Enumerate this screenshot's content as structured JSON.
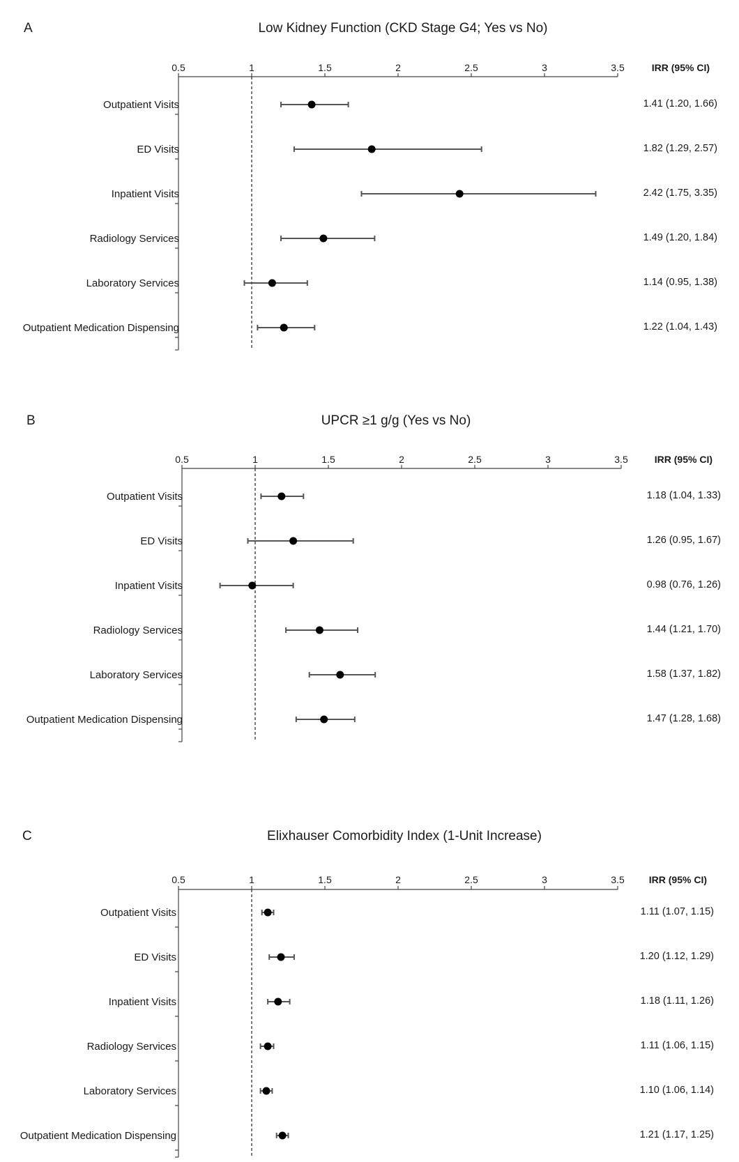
{
  "figure": {
    "ci_header": "IRR (95% CI)"
  },
  "chart_data": [
    {
      "type": "forest",
      "panel_label": "A",
      "title": "Low Kidney Function (CKD Stage G4; Yes vs No)",
      "xlim": [
        0.5,
        3.5
      ],
      "xticks": [
        0.5,
        1,
        1.5,
        2,
        2.5,
        3,
        3.5
      ],
      "xtick_labels": [
        "0.5",
        "1",
        "1.5",
        "2",
        "2.5",
        "3",
        "3.5"
      ],
      "reference_line": 1,
      "categories": [
        "Outpatient Visits",
        "ED Visits",
        "Inpatient Visits",
        "Radiology Services",
        "Laboratory Services",
        "Outpatient Medication Dispensing"
      ],
      "series": [
        {
          "estimate": [
            1.41,
            1.82,
            2.42,
            1.49,
            1.14,
            1.22
          ],
          "lower": [
            1.2,
            1.29,
            1.75,
            1.2,
            0.95,
            1.04
          ],
          "upper": [
            1.66,
            2.57,
            3.35,
            1.84,
            1.38,
            1.43
          ]
        }
      ],
      "ci_labels": [
        "1.41 (1.20, 1.66)",
        "1.82 (1.29, 2.57)",
        "2.42 (1.75, 3.35)",
        "1.49 (1.20, 1.84)",
        "1.14 (0.95, 1.38)",
        "1.22 (1.04, 1.43)"
      ]
    },
    {
      "type": "forest",
      "panel_label": "B",
      "title": "UPCR ≥1 g/g (Yes vs No)",
      "xlim": [
        0.5,
        3.5
      ],
      "xticks": [
        0.5,
        1,
        1.5,
        2,
        2.5,
        3,
        3.5
      ],
      "xtick_labels": [
        "0.5",
        "1",
        "1.5",
        "2",
        "2.5",
        "3",
        "3.5"
      ],
      "reference_line": 1,
      "categories": [
        "Outpatient Visits",
        "ED Visits",
        "Inpatient Visits",
        "Radiology Services",
        "Laboratory Services",
        "Outpatient Medication Dispensing"
      ],
      "series": [
        {
          "estimate": [
            1.18,
            1.26,
            0.98,
            1.44,
            1.58,
            1.47
          ],
          "lower": [
            1.04,
            0.95,
            0.76,
            1.21,
            1.37,
            1.28
          ],
          "upper": [
            1.33,
            1.67,
            1.26,
            1.7,
            1.82,
            1.68
          ]
        }
      ],
      "ci_labels": [
        "1.18 (1.04, 1.33)",
        "1.26 (0.95, 1.67)",
        "0.98 (0.76, 1.26)",
        "1.44 (1.21, 1.70)",
        "1.58 (1.37, 1.82)",
        "1.47 (1.28, 1.68)"
      ]
    },
    {
      "type": "forest",
      "panel_label": "C",
      "title": "Elixhauser Comorbidity Index (1-Unit Increase)",
      "xlim": [
        0.5,
        3.5
      ],
      "xticks": [
        0.5,
        1,
        1.5,
        2,
        2.5,
        3,
        3.5
      ],
      "xtick_labels": [
        "0.5",
        "1",
        "1.5",
        "2",
        "2.5",
        "3",
        "3.5"
      ],
      "reference_line": 1,
      "categories": [
        "Outpatient Visits",
        "ED Visits",
        "Inpatient Visits",
        "Radiology Services",
        "Laboratory Services",
        "Outpatient Medication Dispensing"
      ],
      "series": [
        {
          "estimate": [
            1.11,
            1.2,
            1.18,
            1.11,
            1.1,
            1.21
          ],
          "lower": [
            1.07,
            1.12,
            1.11,
            1.06,
            1.06,
            1.17
          ],
          "upper": [
            1.15,
            1.29,
            1.26,
            1.15,
            1.14,
            1.25
          ]
        }
      ],
      "ci_labels": [
        "1.11 (1.07, 1.15)",
        "1.20 (1.12, 1.29)",
        "1.18 (1.11, 1.26)",
        "1.11 (1.06, 1.15)",
        "1.10 (1.06, 1.14)",
        "1.21 (1.17, 1.25)"
      ]
    }
  ]
}
